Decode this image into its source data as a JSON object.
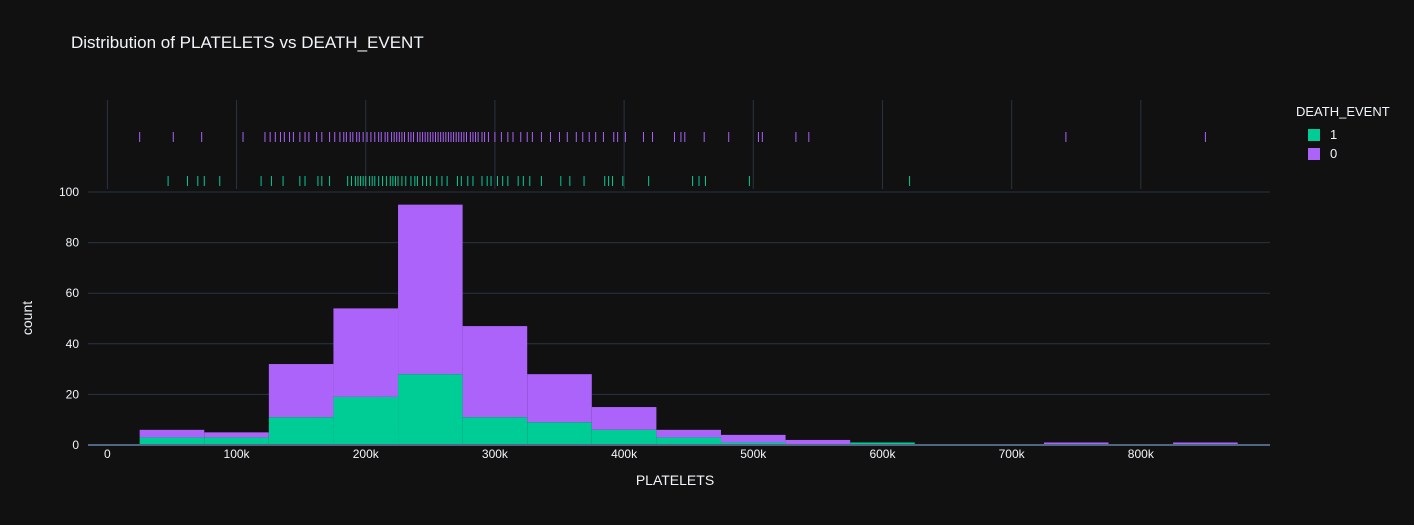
{
  "chart_data": {
    "type": "histogram",
    "title": "Distribution of PLATELETS vs DEATH_EVENT",
    "xlabel": "PLATELETS",
    "ylabel": "count",
    "xlim": [
      -15000,
      900000
    ],
    "ylim": [
      0,
      100
    ],
    "x_ticks": [
      0,
      100000,
      200000,
      300000,
      400000,
      500000,
      600000,
      700000,
      800000
    ],
    "x_tick_labels": [
      "0",
      "100k",
      "200k",
      "300k",
      "400k",
      "500k",
      "600k",
      "700k",
      "800k"
    ],
    "y_ticks": [
      0,
      20,
      40,
      60,
      80,
      100
    ],
    "y_tick_labels": [
      "0",
      "20",
      "40",
      "60",
      "80",
      "100"
    ],
    "barmode": "stack",
    "bin_edges": [
      25000,
      75000,
      125000,
      175000,
      225000,
      275000,
      325000,
      375000,
      425000,
      475000,
      525000,
      575000,
      625000,
      675000,
      725000,
      775000,
      825000,
      875000
    ],
    "legend": {
      "title": "DEATH_EVENT",
      "position": "top-right"
    },
    "series": [
      {
        "name": "1",
        "color": "#00cc96",
        "values": [
          3,
          3,
          11,
          19,
          28,
          11,
          9,
          6,
          3,
          1,
          0,
          1,
          0,
          0,
          0,
          0,
          0
        ]
      },
      {
        "name": "0",
        "color": "#ab63fa",
        "values": [
          3,
          2,
          21,
          35,
          67,
          36,
          19,
          9,
          3,
          3,
          2,
          0,
          0,
          0,
          1,
          0,
          1
        ]
      }
    ],
    "rug": {
      "1": [
        47000,
        62000,
        70000,
        75000,
        87000,
        119000,
        127000,
        136000,
        149000,
        153000,
        163000,
        166000,
        172000,
        186000,
        189000,
        192000,
        194000,
        196000,
        198000,
        200000,
        203000,
        205000,
        207000,
        210000,
        213000,
        216000,
        219000,
        221000,
        223000,
        225000,
        228000,
        231000,
        235000,
        238000,
        240000,
        244000,
        247000,
        250000,
        255000,
        259000,
        263000,
        271000,
        274000,
        279000,
        283000,
        290000,
        294000,
        297000,
        302000,
        306000,
        310000,
        318000,
        322000,
        327000,
        336000,
        351000,
        358000,
        369000,
        385000,
        388000,
        391000,
        399000,
        419000,
        453000,
        458000,
        463000,
        497000,
        621000
      ],
      "0": [
        25000,
        51000,
        73000,
        105000,
        122000,
        126000,
        130000,
        134000,
        137000,
        141000,
        144000,
        149000,
        153000,
        156000,
        162000,
        166000,
        172000,
        176000,
        180000,
        183000,
        185000,
        188000,
        190000,
        193000,
        195000,
        198000,
        201000,
        204000,
        207000,
        210000,
        212000,
        215000,
        217000,
        220000,
        222000,
        224000,
        226000,
        228000,
        230000,
        233000,
        235000,
        237000,
        240000,
        242000,
        244000,
        246000,
        248000,
        250000,
        252000,
        254000,
        256000,
        258000,
        260000,
        262000,
        264000,
        266000,
        268000,
        270000,
        272000,
        274000,
        276000,
        278000,
        281000,
        283000,
        285000,
        287000,
        290000,
        292000,
        295000,
        300000,
        305000,
        310000,
        314000,
        320000,
        325000,
        329000,
        336000,
        343000,
        350000,
        356000,
        363000,
        368000,
        373000,
        378000,
        384000,
        392000,
        395000,
        401000,
        415000,
        422000,
        439000,
        444000,
        447000,
        462000,
        481000,
        504000,
        507000,
        533000,
        543000,
        742000,
        850000
      ]
    }
  }
}
